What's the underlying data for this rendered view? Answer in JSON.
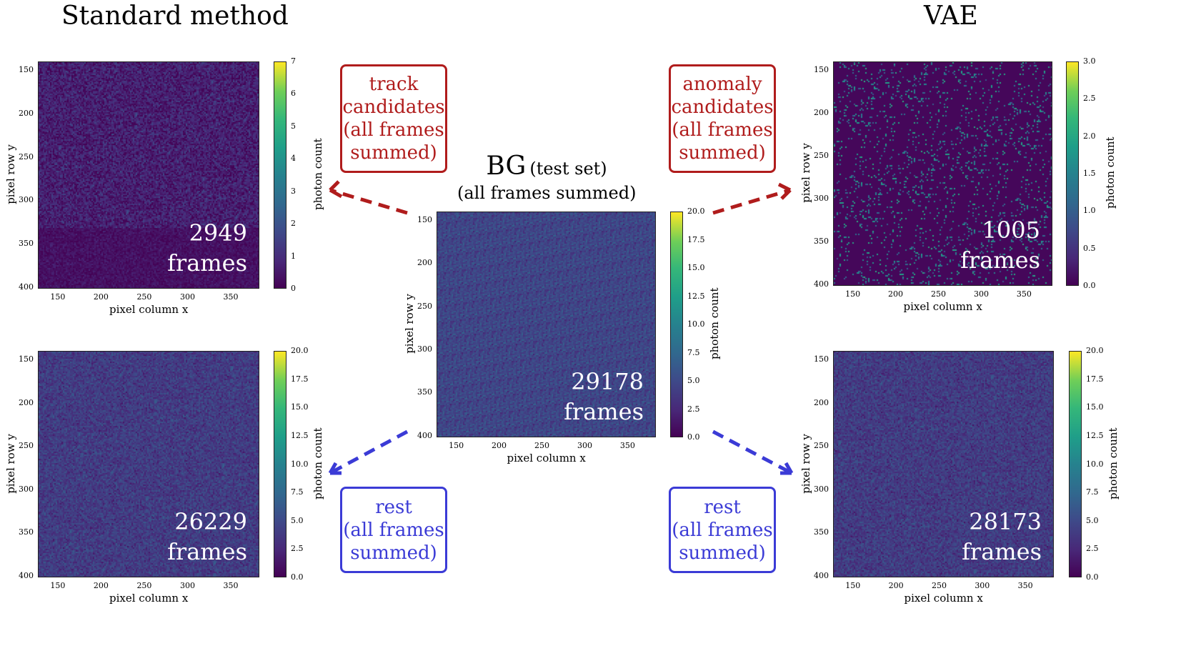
{
  "headings": {
    "left": "Standard method",
    "right": "VAE"
  },
  "center_title": {
    "bg": "BG",
    "testset": "(test set)",
    "subtitle": "(all frames summed)"
  },
  "boxes": {
    "track": [
      "track",
      "candidates",
      "(all frames",
      "summed)"
    ],
    "anomaly": [
      "anomaly",
      "candidates",
      "(all frames",
      "summed)"
    ],
    "rest_left": [
      "rest",
      "(all frames",
      "summed)"
    ],
    "rest_right": [
      "rest",
      "(all frames",
      "summed)"
    ]
  },
  "panels": {
    "std_top": {
      "count": "2949",
      "frames_label": "frames",
      "cbar_ticks": [
        "0",
        "1",
        "2",
        "3",
        "4",
        "5",
        "6",
        "7"
      ]
    },
    "std_bottom": {
      "count": "26229",
      "frames_label": "frames",
      "cbar_ticks": [
        "0.0",
        "2.5",
        "5.0",
        "7.5",
        "10.0",
        "12.5",
        "15.0",
        "17.5",
        "20.0"
      ]
    },
    "center": {
      "count": "29178",
      "frames_label": "frames",
      "cbar_ticks": [
        "0.0",
        "2.5",
        "5.0",
        "7.5",
        "10.0",
        "12.5",
        "15.0",
        "17.5",
        "20.0"
      ]
    },
    "vae_top": {
      "count": "1005",
      "frames_label": "frames",
      "cbar_ticks": [
        "0.0",
        "0.5",
        "1.0",
        "1.5",
        "2.0",
        "2.5",
        "3.0"
      ]
    },
    "vae_bottom": {
      "count": "28173",
      "frames_label": "frames",
      "cbar_ticks": [
        "0.0",
        "2.5",
        "5.0",
        "7.5",
        "10.0",
        "12.5",
        "15.0",
        "17.5",
        "20.0"
      ]
    }
  },
  "axes": {
    "xticks": [
      "150",
      "200",
      "250",
      "300",
      "350"
    ],
    "yticks": [
      "150",
      "200",
      "250",
      "300",
      "350",
      "400"
    ],
    "xlabel": "pixel column x",
    "ylabel": "pixel row y",
    "cbar_label": "photon count"
  },
  "colors": {
    "red": "#b01c1c",
    "blue": "#3b3bd6"
  }
}
